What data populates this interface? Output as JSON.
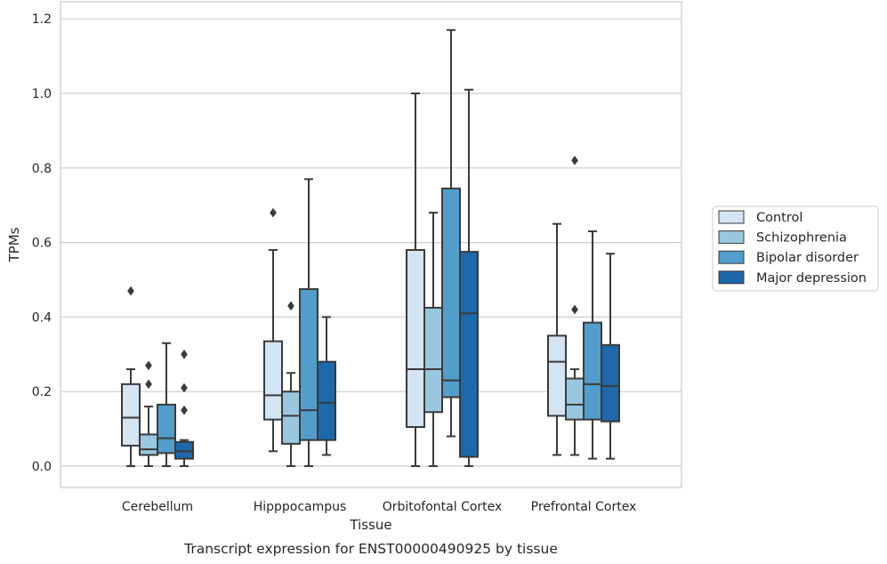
{
  "caption": "Transcript expression for ENST00000490925 by tissue",
  "chart_data": {
    "type": "box",
    "title": "",
    "xlabel": "Tissue",
    "ylabel": "TPMs",
    "ylim": [
      -0.06,
      1.23
    ],
    "yticks": [
      0.0,
      0.2,
      0.4,
      0.6,
      0.8,
      1.0,
      1.2
    ],
    "ytick_labels": [
      "0.0",
      "0.2",
      "0.4",
      "0.6",
      "0.8",
      "1.0",
      "1.2"
    ],
    "grid": "horizontal",
    "legend_position": "outside-right",
    "categories": [
      "Cerebellum",
      "Hipppocampus",
      "Orbitofontal Cortex",
      "Prefrontal Cortex"
    ],
    "series": [
      {
        "name": "Control",
        "color": "#d3e4f3",
        "boxes": [
          {
            "whisker_low": 0.0,
            "q1": 0.055,
            "median": 0.13,
            "q3": 0.22,
            "whisker_high": 0.26,
            "outliers": [
              0.47
            ]
          },
          {
            "whisker_low": 0.04,
            "q1": 0.125,
            "median": 0.19,
            "q3": 0.335,
            "whisker_high": 0.58,
            "outliers": [
              0.68
            ]
          },
          {
            "whisker_low": 0.0,
            "q1": 0.105,
            "median": 0.26,
            "q3": 0.58,
            "whisker_high": 1.0,
            "outliers": []
          },
          {
            "whisker_low": 0.03,
            "q1": 0.135,
            "median": 0.28,
            "q3": 0.35,
            "whisker_high": 0.65,
            "outliers": []
          }
        ]
      },
      {
        "name": "Schizophrenia",
        "color": "#9ac7e0",
        "boxes": [
          {
            "whisker_low": 0.0,
            "q1": 0.03,
            "median": 0.045,
            "q3": 0.085,
            "whisker_high": 0.16,
            "outliers": [
              0.22,
              0.27
            ]
          },
          {
            "whisker_low": 0.0,
            "q1": 0.06,
            "median": 0.135,
            "q3": 0.2,
            "whisker_high": 0.25,
            "outliers": [
              0.43
            ]
          },
          {
            "whisker_low": 0.0,
            "q1": 0.145,
            "median": 0.26,
            "q3": 0.425,
            "whisker_high": 0.68,
            "outliers": []
          },
          {
            "whisker_low": 0.03,
            "q1": 0.125,
            "median": 0.165,
            "q3": 0.235,
            "whisker_high": 0.26,
            "outliers": [
              0.42,
              0.82
            ]
          }
        ]
      },
      {
        "name": "Bipolar disorder",
        "color": "#529dcc",
        "boxes": [
          {
            "whisker_low": 0.0,
            "q1": 0.035,
            "median": 0.075,
            "q3": 0.165,
            "whisker_high": 0.33,
            "outliers": []
          },
          {
            "whisker_low": 0.0,
            "q1": 0.07,
            "median": 0.15,
            "q3": 0.475,
            "whisker_high": 0.77,
            "outliers": []
          },
          {
            "whisker_low": 0.08,
            "q1": 0.185,
            "median": 0.23,
            "q3": 0.745,
            "whisker_high": 1.17,
            "outliers": []
          },
          {
            "whisker_low": 0.02,
            "q1": 0.125,
            "median": 0.22,
            "q3": 0.385,
            "whisker_high": 0.63,
            "outliers": []
          }
        ]
      },
      {
        "name": "Major depression",
        "color": "#1c68aa",
        "boxes": [
          {
            "whisker_low": 0.0,
            "q1": 0.02,
            "median": 0.04,
            "q3": 0.065,
            "whisker_high": 0.07,
            "outliers": [
              0.15,
              0.21,
              0.3
            ]
          },
          {
            "whisker_low": 0.03,
            "q1": 0.07,
            "median": 0.17,
            "q3": 0.28,
            "whisker_high": 0.4,
            "outliers": []
          },
          {
            "whisker_low": 0.0,
            "q1": 0.025,
            "median": 0.41,
            "q3": 0.575,
            "whisker_high": 1.01,
            "outliers": []
          },
          {
            "whisker_low": 0.02,
            "q1": 0.12,
            "median": 0.215,
            "q3": 0.325,
            "whisker_high": 0.57,
            "outliers": []
          }
        ]
      }
    ]
  }
}
